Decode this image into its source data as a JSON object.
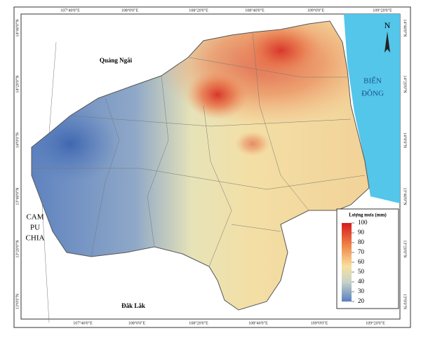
{
  "map": {
    "top_labels": [
      "107°40'0\"E",
      "108°0'0\"E",
      "108°20'0\"E",
      "108°40'0\"E",
      "109°0'0\"E",
      "109°20'0\"E"
    ],
    "bottom_labels": [
      "107°40'0\"E",
      "108°0'0\"E",
      "108°20'0\"E",
      "108°40'0\"E",
      "109°0'0\"E",
      "109°20'0\"E"
    ],
    "left_labels": [
      "14°40'0\"N",
      "14°20'0\"N",
      "14°0'0\"N",
      "13°40'0\"N",
      "13°20'0\"N",
      "13°0'0\"N"
    ],
    "right_labels": [
      "14°40'0\"N",
      "14°20'0\"N",
      "14°0'0\"N",
      "13°40'0\"N",
      "13°20'0\"N",
      "13°0'0\"N"
    ],
    "regions": {
      "north": "Quảng Ngãi",
      "sea_1": "BIỂN",
      "sea_2": "ĐÔNG",
      "west_1": "CAM",
      "west_2": "PU",
      "west_3": "CHIA",
      "south": "Đắk Lắk"
    },
    "north_arrow": "N",
    "legend": {
      "title": "Lượng mưa (mm)",
      "ticks": [
        100,
        90,
        80,
        70,
        60,
        50,
        40,
        30,
        20
      ]
    }
  }
}
